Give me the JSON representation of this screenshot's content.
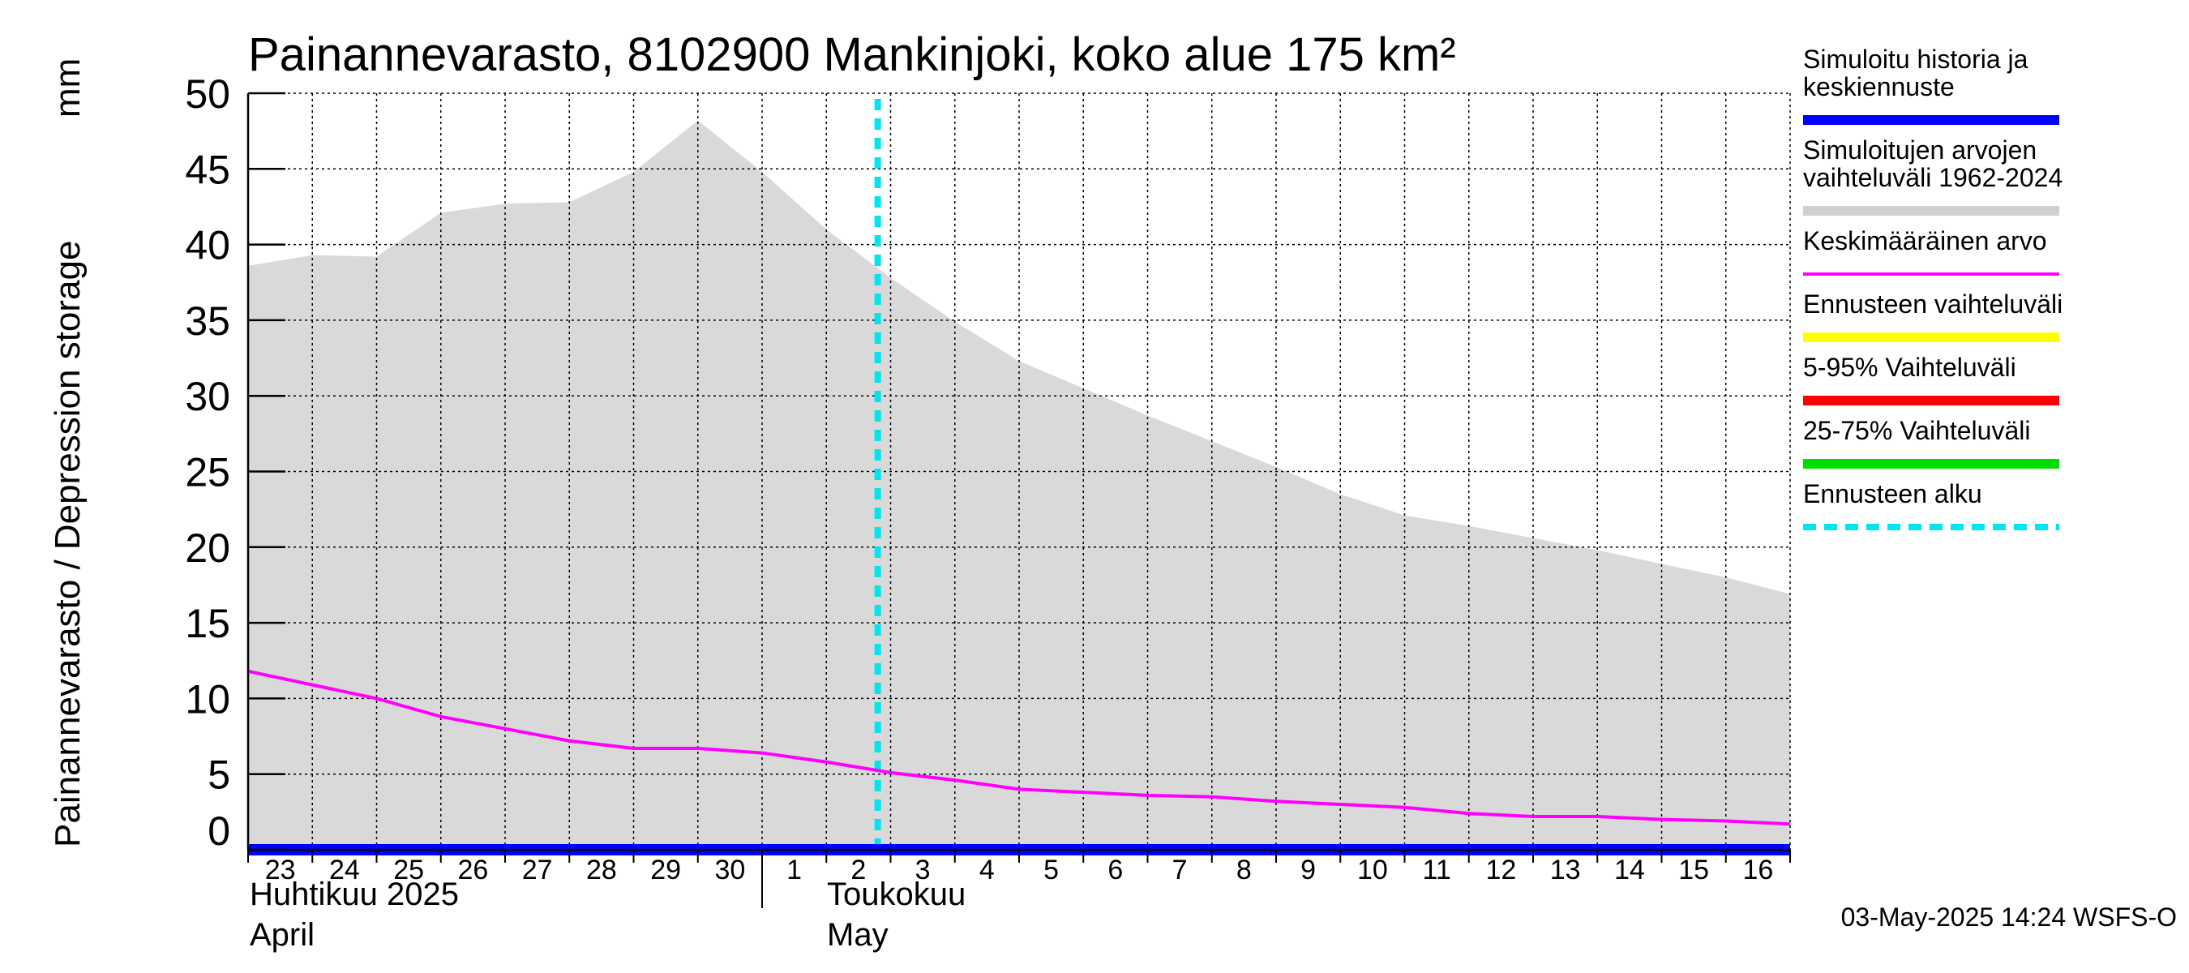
{
  "chart_data": {
    "type": "area",
    "title": "Painannevarasto, 8102900 Mankinjoki, koko alue 175 km²",
    "ylabel": "Painannevarasto / Depression storage",
    "yunit": "mm",
    "ylim": [
      0,
      50
    ],
    "yticks": [
      "0",
      "5",
      "10",
      "15",
      "20",
      "25",
      "30",
      "35",
      "40",
      "45",
      "50"
    ],
    "grid": true,
    "legend_position": "right",
    "x_dates": [
      "2025-04-23",
      "2025-04-24",
      "2025-04-25",
      "2025-04-26",
      "2025-04-27",
      "2025-04-28",
      "2025-04-29",
      "2025-04-30",
      "2025-05-01",
      "2025-05-02",
      "2025-05-03",
      "2025-05-04",
      "2025-05-05",
      "2025-05-06",
      "2025-05-07",
      "2025-05-08",
      "2025-05-09",
      "2025-05-10",
      "2025-05-11",
      "2025-05-12",
      "2025-05-13",
      "2025-05-14",
      "2025-05-15",
      "2025-05-16",
      "2025-05-17"
    ],
    "xtick_labels": [
      "23",
      "24",
      "25",
      "26",
      "27",
      "28",
      "29",
      "30",
      "1",
      "2",
      "3",
      "4",
      "5",
      "6",
      "7",
      "8",
      "9",
      "10",
      "11",
      "12",
      "13",
      "14",
      "15",
      "16"
    ],
    "month_labels": [
      {
        "fi": "Huhtikuu  2025",
        "en": "April"
      },
      {
        "fi": "Toukokuu",
        "en": "May"
      }
    ],
    "forecast_start": "2025-05-03",
    "series": [
      {
        "name": "Simuloitujen arvojen vaihteluväli 1962-2024",
        "kind": "band",
        "color": "#d9d9d9",
        "upper": [
          38.6,
          39.3,
          39.2,
          42.1,
          42.7,
          42.8,
          44.8,
          48.2,
          44.8,
          41.0,
          37.8,
          34.9,
          32.3,
          30.5,
          28.7,
          27.0,
          25.3,
          23.5,
          22.1,
          21.4,
          20.6,
          19.8,
          18.9,
          18.0,
          16.9
        ],
        "lower": [
          0,
          0,
          0,
          0,
          0,
          0,
          0,
          0,
          0,
          0,
          0,
          0,
          0,
          0,
          0,
          0,
          0,
          0,
          0,
          0,
          0,
          0,
          0,
          0,
          0
        ]
      },
      {
        "name": "Keskimääräinen arvo",
        "kind": "line",
        "color": "#ff00ff",
        "values": [
          11.8,
          10.9,
          10.0,
          8.8,
          8.0,
          7.2,
          6.7,
          6.7,
          6.4,
          5.8,
          5.1,
          4.6,
          4.0,
          3.8,
          3.6,
          3.5,
          3.2,
          3.0,
          2.8,
          2.4,
          2.2,
          2.2,
          2.0,
          1.9,
          1.7
        ]
      },
      {
        "name": "Simuloitu historia ja keskiennuste",
        "kind": "line",
        "color": "#0000ff",
        "values": [
          0,
          0,
          0,
          0,
          0,
          0,
          0,
          0,
          0,
          0,
          0,
          0,
          0,
          0,
          0,
          0,
          0,
          0,
          0,
          0,
          0,
          0,
          0,
          0,
          0
        ]
      }
    ]
  },
  "legend": [
    {
      "lines": [
        "Simuloitu historia ja",
        "keskiennuste"
      ],
      "color": "#0000ff",
      "style": "solid"
    },
    {
      "lines": [
        "Simuloitujen arvojen",
        "vaihteluväli 1962-2024"
      ],
      "color": "#d0d0d0",
      "style": "solid"
    },
    {
      "lines": [
        "Keskimääräinen arvo"
      ],
      "color": "#ff00ff",
      "style": "thin"
    },
    {
      "lines": [
        "Ennusteen vaihteluväli"
      ],
      "color": "#ffff00",
      "style": "solid"
    },
    {
      "lines": [
        "5-95% Vaihteluväli"
      ],
      "color": "#ff0000",
      "style": "solid"
    },
    {
      "lines": [
        "25-75% Vaihteluväli"
      ],
      "color": "#00dd00",
      "style": "solid"
    },
    {
      "lines": [
        "Ennusteen alku"
      ],
      "color": "#00e5ee",
      "style": "dashed"
    }
  ],
  "timestamp": "03-May-2025 14:24 WSFS-O"
}
